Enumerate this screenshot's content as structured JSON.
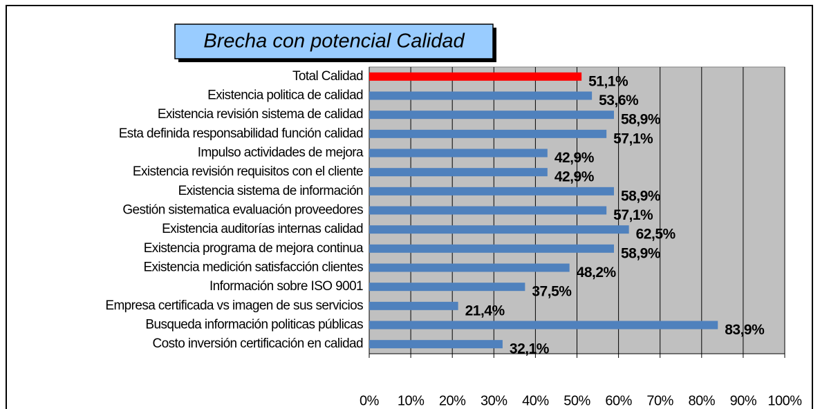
{
  "chart_data": {
    "type": "barh",
    "title": "Brecha con potencial Calidad",
    "categories": [
      "Total Calidad",
      "Existencia politica de calidad",
      "Existencia revisión sistema de calidad",
      "Esta definida responsabilidad función calidad",
      "Impulso actividades de mejora",
      "Existencia revisión requisitos con el cliente",
      "Existencia sistema de información",
      "Gestión sistematica evaluación proveedores",
      "Existencia auditorías internas calidad",
      "Existencia programa de mejora continua",
      "Existencia medición satisfacción clientes",
      "Información sobre ISO 9001",
      "Empresa certificada vs imagen de sus servicios",
      "Busqueda información politicas públicas",
      "Costo inversión certificación en calidad"
    ],
    "values": [
      51.1,
      53.6,
      58.9,
      57.1,
      42.9,
      42.9,
      58.9,
      57.1,
      62.5,
      58.9,
      48.2,
      37.5,
      21.4,
      83.9,
      32.1
    ],
    "value_labels": [
      "51,1%",
      "53,6%",
      "58,9%",
      "57,1%",
      "42,9%",
      "42,9%",
      "58,9%",
      "57,1%",
      "62,5%",
      "58,9%",
      "48,2%",
      "37,5%",
      "21,4%",
      "83,9%",
      "32,1%"
    ],
    "colors": [
      "#ff0000",
      "#4f81bd",
      "#4f81bd",
      "#4f81bd",
      "#4f81bd",
      "#4f81bd",
      "#4f81bd",
      "#4f81bd",
      "#4f81bd",
      "#4f81bd",
      "#4f81bd",
      "#4f81bd",
      "#4f81bd",
      "#4f81bd",
      "#4f81bd"
    ],
    "xlim": [
      0,
      100
    ],
    "xticks": [
      {
        "value": 0,
        "label": "0%"
      },
      {
        "value": 10,
        "label": "10%"
      },
      {
        "value": 20,
        "label": "20%"
      },
      {
        "value": 30,
        "label": "30%"
      },
      {
        "value": 40,
        "label": "40%"
      },
      {
        "value": 50,
        "label": "50%"
      },
      {
        "value": 60,
        "label": "60%"
      },
      {
        "value": 70,
        "label": "70%"
      },
      {
        "value": 80,
        "label": "80%"
      },
      {
        "value": 90,
        "label": "90%"
      },
      {
        "value": 100,
        "label": "100%"
      }
    ],
    "grid": true
  }
}
